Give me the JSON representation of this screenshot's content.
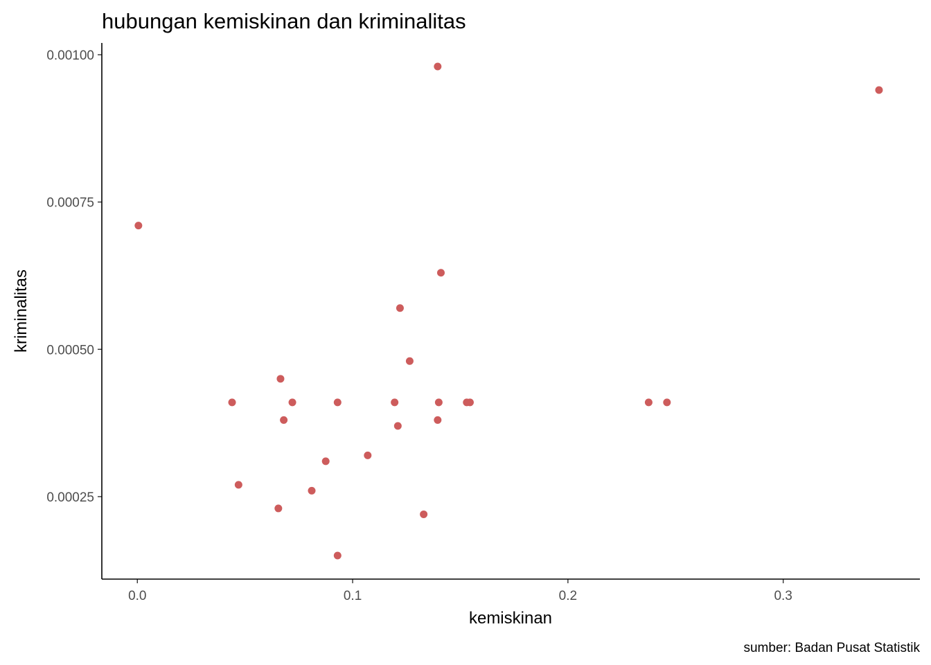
{
  "chart_data": {
    "type": "scatter",
    "title": "hubungan kemiskinan dan kriminalitas",
    "xlabel": "kemiskinan",
    "ylabel": "kriminalitas",
    "caption": "sumber: Badan Pusat Statistik",
    "xlim": [
      -0.0165,
      0.3635
    ],
    "ylim": [
      0.00011,
      0.00102
    ],
    "x_ticks": [
      0.0,
      0.1,
      0.2,
      0.3
    ],
    "x_tick_labels": [
      "0.0",
      "0.1",
      "0.2",
      "0.3"
    ],
    "y_ticks": [
      0.00025,
      0.0005,
      0.00075,
      0.001
    ],
    "y_tick_labels": [
      "0.00025",
      "0.00050",
      "0.00075",
      "0.00100"
    ],
    "grid": false,
    "legend": "none",
    "point_color": "#cd5c5c",
    "points": [
      {
        "x": 0.0005,
        "y": 0.00071
      },
      {
        "x": 0.044,
        "y": 0.00041
      },
      {
        "x": 0.047,
        "y": 0.00027
      },
      {
        "x": 0.0655,
        "y": 0.00023
      },
      {
        "x": 0.0665,
        "y": 0.00045
      },
      {
        "x": 0.068,
        "y": 0.00038
      },
      {
        "x": 0.072,
        "y": 0.00041
      },
      {
        "x": 0.081,
        "y": 0.00026
      },
      {
        "x": 0.0875,
        "y": 0.00031
      },
      {
        "x": 0.093,
        "y": 0.00041
      },
      {
        "x": 0.093,
        "y": 0.00015
      },
      {
        "x": 0.107,
        "y": 0.00032
      },
      {
        "x": 0.1195,
        "y": 0.00041
      },
      {
        "x": 0.121,
        "y": 0.00037
      },
      {
        "x": 0.122,
        "y": 0.00057
      },
      {
        "x": 0.1265,
        "y": 0.00048
      },
      {
        "x": 0.133,
        "y": 0.00022
      },
      {
        "x": 0.1395,
        "y": 0.00098
      },
      {
        "x": 0.1395,
        "y": 0.00038
      },
      {
        "x": 0.14,
        "y": 0.00041
      },
      {
        "x": 0.141,
        "y": 0.00063
      },
      {
        "x": 0.153,
        "y": 0.00041
      },
      {
        "x": 0.1545,
        "y": 0.00041
      },
      {
        "x": 0.2375,
        "y": 0.00041
      },
      {
        "x": 0.246,
        "y": 0.00041
      },
      {
        "x": 0.3445,
        "y": 0.00094
      }
    ]
  }
}
